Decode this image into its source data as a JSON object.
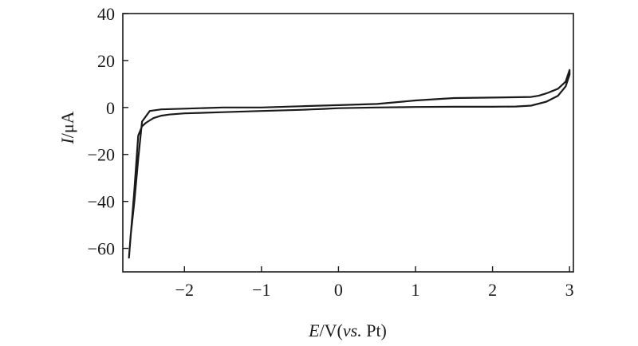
{
  "chart_data": {
    "type": "line",
    "title": "",
    "xlabel": "E/V(vs. Pt)",
    "ylabel": "I/μA",
    "xlabel_parts": {
      "var": "E",
      "unit": "/V(",
      "ref_italic": "vs.",
      "ref": " Pt)"
    },
    "ylabel_parts": {
      "var": "I",
      "unit": "/μA"
    },
    "xlim": [
      -2.8,
      3.05
    ],
    "ylim": [
      -70,
      40
    ],
    "xticks": [
      -2,
      -1,
      0,
      1,
      2,
      3
    ],
    "yticks": [
      -60,
      -40,
      -20,
      0,
      20,
      40
    ],
    "xtick_labels": [
      "−2",
      "−1",
      "0",
      "1",
      "2",
      "3"
    ],
    "ytick_labels": [
      "−60",
      "−40",
      "−20",
      "0",
      "20",
      "40"
    ],
    "grid": false,
    "series": [
      {
        "x": [
          -2.72,
          -2.65,
          -2.6,
          -2.55,
          -2.5,
          -2.45,
          -2.4,
          -2.3,
          -2.2,
          -2.0,
          -1.5,
          -1.0,
          -0.5,
          -0.35,
          -0.2,
          0.0,
          0.5,
          1.0,
          1.5,
          2.0,
          2.3,
          2.5,
          2.7,
          2.85,
          2.95,
          3.0,
          3.0,
          2.95,
          2.85,
          2.7,
          2.6,
          2.5,
          2.0,
          1.5,
          1.0,
          0.5,
          0.0,
          -0.5,
          -1.0,
          -1.5,
          -2.0,
          -2.3,
          -2.45,
          -2.55,
          -2.6,
          -2.65,
          -2.7,
          -2.72
        ],
        "y": [
          -64,
          -35,
          -12,
          -8,
          -6.5,
          -5.5,
          -4.5,
          -3.5,
          -3,
          -2.5,
          -2,
          -1.5,
          -1,
          -0.8,
          -0.6,
          -0.3,
          0,
          0.2,
          0.3,
          0.3,
          0.4,
          0.8,
          2.5,
          5,
          9,
          14,
          16,
          11,
          8,
          6,
          5,
          4.5,
          4.2,
          4,
          3,
          1.5,
          1,
          0.5,
          0,
          0,
          -0.5,
          -0.8,
          -1.5,
          -6,
          -22,
          -40,
          -55,
          -64
        ]
      }
    ]
  }
}
